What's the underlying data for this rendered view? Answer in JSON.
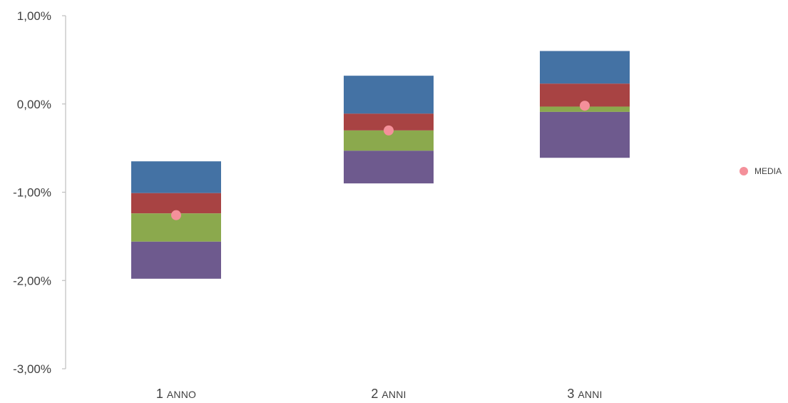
{
  "chart_data": {
    "type": "bar",
    "categories": [
      {
        "number": "1",
        "word": "ANNO"
      },
      {
        "number": "2",
        "word": "ANNI"
      },
      {
        "number": "3",
        "word": "ANNI"
      }
    ],
    "y_ticks": [
      1.0,
      0.0,
      -1.0,
      -2.0,
      -3.0
    ],
    "y_tick_labels": [
      "1,00%",
      "0,00%",
      "-1,00%",
      "-2,00%",
      "-3,00%"
    ],
    "ylim": [
      -3.0,
      1.0
    ],
    "bands": [
      [
        {
          "from": -0.65,
          "to": -1.01,
          "color": "#4472A4"
        },
        {
          "from": -1.01,
          "to": -1.24,
          "color": "#A84343"
        },
        {
          "from": -1.24,
          "to": -1.56,
          "color": "#8BA94D"
        },
        {
          "from": -1.56,
          "to": -1.98,
          "color": "#6E5A8E"
        }
      ],
      [
        {
          "from": 0.32,
          "to": -0.11,
          "color": "#4472A4"
        },
        {
          "from": -0.11,
          "to": -0.3,
          "color": "#A84343"
        },
        {
          "from": -0.3,
          "to": -0.53,
          "color": "#8BA94D"
        },
        {
          "from": -0.53,
          "to": -0.9,
          "color": "#6E5A8E"
        }
      ],
      [
        {
          "from": 0.6,
          "to": 0.23,
          "color": "#4472A4"
        },
        {
          "from": 0.23,
          "to": -0.03,
          "color": "#A84343"
        },
        {
          "from": -0.03,
          "to": -0.09,
          "color": "#8BA94D"
        },
        {
          "from": -0.09,
          "to": -0.61,
          "color": "#6E5A8E"
        }
      ]
    ],
    "series": [
      {
        "name": "MEDIA",
        "type": "scatter",
        "values": [
          -1.26,
          -0.3,
          -0.02
        ],
        "color": "#F4909A"
      }
    ],
    "legend": {
      "placement": "right"
    },
    "grid": false
  }
}
